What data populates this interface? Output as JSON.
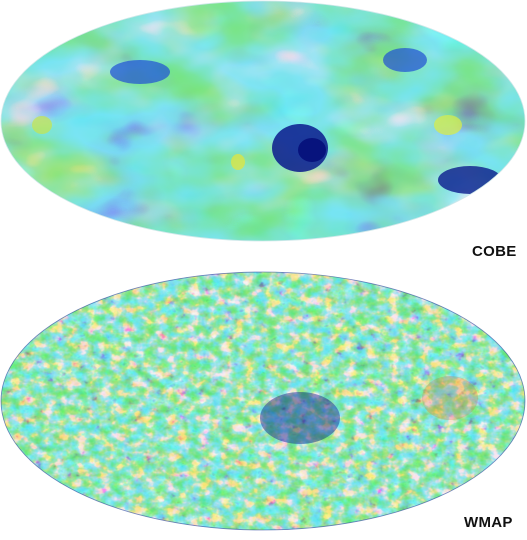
{
  "panels": [
    {
      "label": "COBE",
      "map_style": "smooth-low-resolution"
    },
    {
      "label": "WMAP",
      "map_style": "fine-high-resolution"
    }
  ],
  "colors": {
    "background": "#ffffff",
    "colormap": [
      "#0b1a8c",
      "#1f4fd6",
      "#2fb0e6",
      "#35c7a6",
      "#57c45a",
      "#e3e236",
      "#f29a2e",
      "#c9261d"
    ]
  }
}
